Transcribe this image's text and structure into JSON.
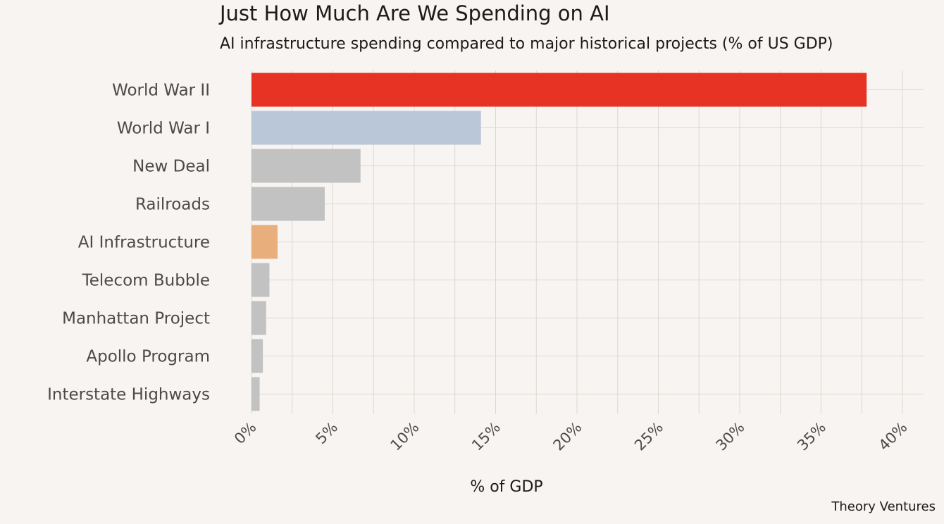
{
  "chart_data": {
    "type": "bar",
    "orientation": "horizontal",
    "title": "Just How Much Are We Spending on AI",
    "subtitle": "AI infrastructure spending compared to major historical projects (% of US GDP)",
    "xlabel": "% of GDP",
    "ylabel": "",
    "xlim": [
      0,
      40
    ],
    "xticks": [
      0,
      5,
      10,
      15,
      20,
      25,
      30,
      35,
      40
    ],
    "xtick_labels": [
      "0%",
      "5%",
      "10%",
      "15%",
      "20%",
      "25%",
      "30%",
      "35%",
      "40%"
    ],
    "categories": [
      "World War II",
      "World War I",
      "New Deal",
      "Railroads",
      "AI Infrastructure",
      "Telecom Bubble",
      "Manhattan Project",
      "Apollo Program",
      "Interstate Highways"
    ],
    "values": [
      37.8,
      14.1,
      6.7,
      4.5,
      1.6,
      1.1,
      0.9,
      0.7,
      0.5
    ],
    "colors": [
      "#e63323",
      "#bac7d8",
      "#c2c2c2",
      "#c2c2c2",
      "#e8ae7c",
      "#c2c2c2",
      "#c2c2c2",
      "#c2c2c2",
      "#c2c2c2"
    ],
    "grid": true,
    "source": "Theory Ventures"
  }
}
